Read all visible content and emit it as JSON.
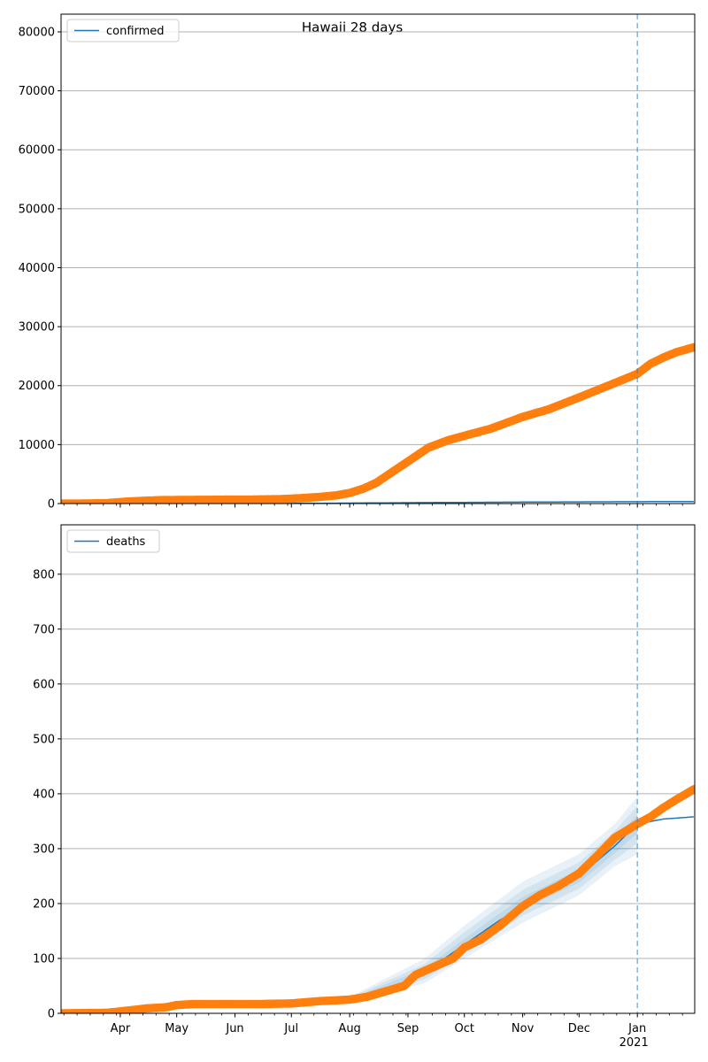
{
  "figure": {
    "title": "Hawaii 28 days"
  },
  "colors": {
    "observed": "#ff7f0e",
    "model": "#1f77b4",
    "grid": "#b0b0b0",
    "band": "#1f77b4"
  },
  "chart_data": [
    {
      "type": "line",
      "xlabel": "",
      "ylabel": "",
      "x_range": [
        "2020-03-01",
        "2021-01-31"
      ],
      "ylim": [
        0,
        83000
      ],
      "yticks": [
        0,
        10000,
        20000,
        30000,
        40000,
        50000,
        60000,
        70000,
        80000
      ],
      "grid": "horizontal",
      "legend": {
        "placement": "upper-left",
        "entries": [
          "confirmed"
        ]
      },
      "forecast_start": "2021-01-01",
      "observed": {
        "marker": "circle",
        "points": [
          [
            "2020-03-01",
            0
          ],
          [
            "2020-03-15",
            10
          ],
          [
            "2020-03-25",
            80
          ],
          [
            "2020-04-05",
            350
          ],
          [
            "2020-04-15",
            500
          ],
          [
            "2020-04-25",
            600
          ],
          [
            "2020-05-15",
            630
          ],
          [
            "2020-06-10",
            680
          ],
          [
            "2020-06-25",
            750
          ],
          [
            "2020-07-05",
            900
          ],
          [
            "2020-07-15",
            1100
          ],
          [
            "2020-07-25",
            1400
          ],
          [
            "2020-08-01",
            1800
          ],
          [
            "2020-08-08",
            2500
          ],
          [
            "2020-08-15",
            3500
          ],
          [
            "2020-08-22",
            5000
          ],
          [
            "2020-08-29",
            6500
          ],
          [
            "2020-09-05",
            8000
          ],
          [
            "2020-09-12",
            9500
          ],
          [
            "2020-09-22",
            10700
          ],
          [
            "2020-10-01",
            11500
          ],
          [
            "2020-10-15",
            12700
          ],
          [
            "2020-11-01",
            14700
          ],
          [
            "2020-11-15",
            16000
          ],
          [
            "2020-12-01",
            18000
          ],
          [
            "2020-12-15",
            19800
          ],
          [
            "2021-01-01",
            22000
          ],
          [
            "2021-01-08",
            23700
          ],
          [
            "2021-01-15",
            24800
          ],
          [
            "2021-01-22",
            25700
          ],
          [
            "2021-01-31",
            26500
          ]
        ]
      },
      "model": {
        "name": "confirmed",
        "points": [
          [
            "2020-03-01",
            0
          ],
          [
            "2020-07-01",
            20
          ],
          [
            "2020-08-01",
            80
          ],
          [
            "2020-09-01",
            150
          ],
          [
            "2020-10-01",
            200
          ],
          [
            "2020-11-01",
            250
          ],
          [
            "2020-12-01",
            290
          ],
          [
            "2021-01-01",
            320
          ],
          [
            "2021-01-31",
            340
          ]
        ]
      },
      "bands": []
    },
    {
      "type": "line",
      "xlabel": "",
      "ylabel": "",
      "x_range": [
        "2020-03-01",
        "2021-01-31"
      ],
      "ylim": [
        0,
        890
      ],
      "yticks": [
        0,
        100,
        200,
        300,
        400,
        500,
        600,
        700,
        800
      ],
      "grid": "horizontal",
      "legend": {
        "placement": "upper-left",
        "entries": [
          "deaths"
        ]
      },
      "forecast_start": "2021-01-01",
      "observed": {
        "marker": "circle",
        "points": [
          [
            "2020-03-01",
            0
          ],
          [
            "2020-03-25",
            1
          ],
          [
            "2020-04-05",
            5
          ],
          [
            "2020-04-15",
            9
          ],
          [
            "2020-04-25",
            11
          ],
          [
            "2020-05-01",
            15
          ],
          [
            "2020-05-10",
            17
          ],
          [
            "2020-06-15",
            17
          ],
          [
            "2020-07-01",
            18
          ],
          [
            "2020-07-15",
            22
          ],
          [
            "2020-08-01",
            25
          ],
          [
            "2020-08-10",
            30
          ],
          [
            "2020-08-20",
            40
          ],
          [
            "2020-08-30",
            50
          ],
          [
            "2020-09-05",
            70
          ],
          [
            "2020-09-15",
            85
          ],
          [
            "2020-09-25",
            100
          ],
          [
            "2020-10-01",
            120
          ],
          [
            "2020-10-10",
            135
          ],
          [
            "2020-10-20",
            160
          ],
          [
            "2020-11-01",
            195
          ],
          [
            "2020-11-10",
            215
          ],
          [
            "2020-11-20",
            232
          ],
          [
            "2020-12-01",
            255
          ],
          [
            "2020-12-10",
            285
          ],
          [
            "2020-12-20",
            320
          ],
          [
            "2021-01-01",
            345
          ],
          [
            "2021-01-08",
            358
          ],
          [
            "2021-01-15",
            375
          ],
          [
            "2021-01-22",
            390
          ],
          [
            "2021-01-31",
            408
          ]
        ]
      },
      "model": {
        "name": "deaths",
        "points": [
          [
            "2020-03-01",
            0
          ],
          [
            "2020-04-15",
            8
          ],
          [
            "2020-05-15",
            16
          ],
          [
            "2020-07-01",
            18
          ],
          [
            "2020-08-01",
            24
          ],
          [
            "2020-08-20",
            38
          ],
          [
            "2020-09-10",
            75
          ],
          [
            "2020-10-01",
            125
          ],
          [
            "2020-10-20",
            170
          ],
          [
            "2020-11-10",
            210
          ],
          [
            "2020-12-01",
            250
          ],
          [
            "2020-12-20",
            305
          ],
          [
            "2021-01-01",
            345
          ],
          [
            "2021-01-15",
            354
          ],
          [
            "2021-01-31",
            358
          ]
        ]
      },
      "bands": [
        {
          "level": "outer",
          "lower": [
            [
              "2020-03-01",
              0
            ],
            [
              "2020-06-01",
              14
            ],
            [
              "2020-08-01",
              20
            ],
            [
              "2020-09-10",
              55
            ],
            [
              "2020-10-01",
              100
            ],
            [
              "2020-11-01",
              165
            ],
            [
              "2020-12-01",
              215
            ],
            [
              "2020-12-20",
              268
            ],
            [
              "2021-01-01",
              290
            ]
          ],
          "upper": [
            [
              "2020-03-01",
              0
            ],
            [
              "2020-06-01",
              22
            ],
            [
              "2020-08-01",
              30
            ],
            [
              "2020-09-10",
              100
            ],
            [
              "2020-10-01",
              160
            ],
            [
              "2020-11-01",
              240
            ],
            [
              "2020-12-01",
              290
            ],
            [
              "2020-12-20",
              345
            ],
            [
              "2021-01-01",
              395
            ]
          ]
        },
        {
          "level": "middle",
          "lower": [
            [
              "2020-03-01",
              0
            ],
            [
              "2020-06-01",
              15
            ],
            [
              "2020-08-01",
              21
            ],
            [
              "2020-09-10",
              62
            ],
            [
              "2020-10-01",
              110
            ],
            [
              "2020-11-01",
              178
            ],
            [
              "2020-12-01",
              227
            ],
            [
              "2020-12-20",
              280
            ],
            [
              "2021-01-01",
              310
            ]
          ],
          "upper": [
            [
              "2020-03-01",
              0
            ],
            [
              "2020-06-01",
              20
            ],
            [
              "2020-08-01",
              28
            ],
            [
              "2020-09-10",
              90
            ],
            [
              "2020-10-01",
              148
            ],
            [
              "2020-11-01",
              225
            ],
            [
              "2020-12-01",
              275
            ],
            [
              "2020-12-20",
              332
            ],
            [
              "2021-01-01",
              378
            ]
          ]
        },
        {
          "level": "inner",
          "lower": [
            [
              "2020-03-01",
              0
            ],
            [
              "2020-06-01",
              16
            ],
            [
              "2020-08-01",
              22
            ],
            [
              "2020-09-10",
              68
            ],
            [
              "2020-10-01",
              118
            ],
            [
              "2020-11-01",
              190
            ],
            [
              "2020-12-01",
              238
            ],
            [
              "2020-12-20",
              292
            ],
            [
              "2021-01-01",
              328
            ]
          ],
          "upper": [
            [
              "2020-03-01",
              0
            ],
            [
              "2020-06-01",
              19
            ],
            [
              "2020-08-01",
              26
            ],
            [
              "2020-09-10",
              82
            ],
            [
              "2020-10-01",
              136
            ],
            [
              "2020-11-01",
              212
            ],
            [
              "2020-12-01",
              262
            ],
            [
              "2020-12-20",
              318
            ],
            [
              "2021-01-01",
              362
            ]
          ]
        }
      ]
    }
  ],
  "x_axis": {
    "major_ticks": [
      {
        "date": "2020-04-01",
        "label": "Apr"
      },
      {
        "date": "2020-05-01",
        "label": "May"
      },
      {
        "date": "2020-06-01",
        "label": "Jun"
      },
      {
        "date": "2020-07-01",
        "label": "Jul"
      },
      {
        "date": "2020-08-01",
        "label": "Aug"
      },
      {
        "date": "2020-09-01",
        "label": "Sep"
      },
      {
        "date": "2020-10-01",
        "label": "Oct"
      },
      {
        "date": "2020-11-01",
        "label": "Nov"
      },
      {
        "date": "2020-12-01",
        "label": "Dec"
      },
      {
        "date": "2021-01-01",
        "label": "Jan"
      }
    ],
    "year_label": {
      "date": "2021-01-01",
      "label": "2021"
    }
  }
}
